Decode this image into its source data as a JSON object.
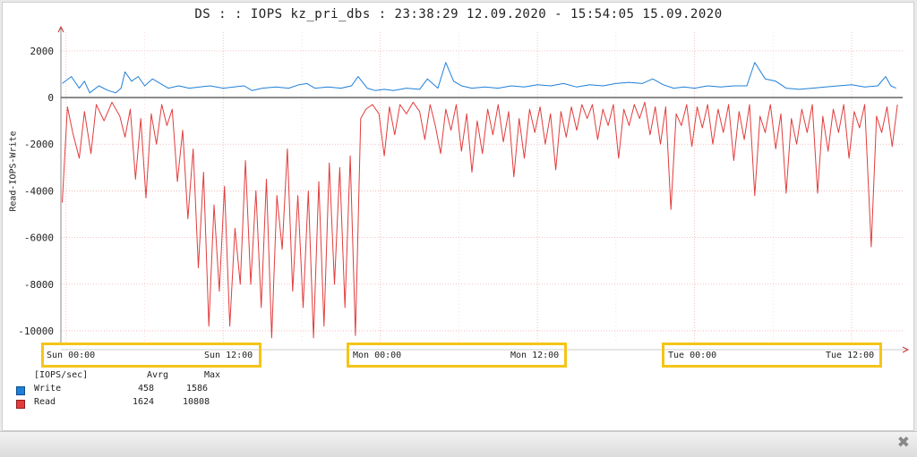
{
  "title": "DS : : IOPS kz_pri_dbs : 23:38:29 12.09.2020 - 15:54:05 15.09.2020",
  "window": {
    "close_glyph": "✖"
  },
  "legend": {
    "header": {
      "unit": "[IOPS/sec]",
      "avg_label": "Avrg",
      "max_label": "Max"
    },
    "items": [
      {
        "name": "Write",
        "avg": "458",
        "max": "1586",
        "color": "#1f7fd8"
      },
      {
        "name": "Read",
        "avg": "1624",
        "max": "10808",
        "color": "#e23c3c"
      }
    ]
  },
  "chart_data": {
    "type": "line",
    "title": "DS : : IOPS kz_pri_dbs : 23:38:29 12.09.2020 - 15:54:05 15.09.2020",
    "ylabel": "Read-IOPS-Write",
    "xlabel": "",
    "ylim": [
      -10500,
      2800
    ],
    "yticks": [
      2000,
      0,
      -2000,
      -4000,
      -6000,
      -8000,
      -10000
    ],
    "x_unit": "hours since Sun 00:00",
    "xlim": [
      -0.4,
      63.9
    ],
    "xticks": [
      {
        "x": 0,
        "label": "Sun 00:00"
      },
      {
        "x": 12,
        "label": "Sun 12:00"
      },
      {
        "x": 24,
        "label": "Mon 00:00"
      },
      {
        "x": 36,
        "label": "Mon 12:00"
      },
      {
        "x": 48,
        "label": "Tue 00:00"
      },
      {
        "x": 60,
        "label": "Tue 12:00"
      }
    ],
    "grid": true,
    "series": [
      {
        "name": "Write",
        "color": "#1f7fd8",
        "points": [
          [
            -0.3,
            600
          ],
          [
            0.4,
            900
          ],
          [
            1.0,
            400
          ],
          [
            1.4,
            700
          ],
          [
            1.8,
            200
          ],
          [
            2.5,
            500
          ],
          [
            3.2,
            300
          ],
          [
            3.8,
            200
          ],
          [
            4.2,
            400
          ],
          [
            4.5,
            1100
          ],
          [
            5.0,
            700
          ],
          [
            5.5,
            900
          ],
          [
            6.0,
            500
          ],
          [
            6.6,
            800
          ],
          [
            7.2,
            600
          ],
          [
            7.8,
            400
          ],
          [
            8.6,
            500
          ],
          [
            9.4,
            400
          ],
          [
            10.2,
            450
          ],
          [
            11.0,
            500
          ],
          [
            12.0,
            400
          ],
          [
            12.8,
            450
          ],
          [
            13.6,
            500
          ],
          [
            14.2,
            300
          ],
          [
            15.0,
            400
          ],
          [
            16.0,
            450
          ],
          [
            17.0,
            400
          ],
          [
            17.8,
            550
          ],
          [
            18.4,
            600
          ],
          [
            19.0,
            400
          ],
          [
            20.0,
            450
          ],
          [
            21.0,
            400
          ],
          [
            21.8,
            500
          ],
          [
            22.3,
            900
          ],
          [
            23.0,
            400
          ],
          [
            23.6,
            300
          ],
          [
            24.3,
            350
          ],
          [
            25.0,
            300
          ],
          [
            26.0,
            400
          ],
          [
            27.0,
            350
          ],
          [
            27.6,
            800
          ],
          [
            28.4,
            400
          ],
          [
            29.0,
            1500
          ],
          [
            29.6,
            700
          ],
          [
            30.2,
            500
          ],
          [
            31.0,
            400
          ],
          [
            32.0,
            450
          ],
          [
            33.0,
            400
          ],
          [
            34.0,
            500
          ],
          [
            35.0,
            450
          ],
          [
            36.0,
            550
          ],
          [
            37.0,
            500
          ],
          [
            38.0,
            600
          ],
          [
            39.0,
            450
          ],
          [
            40.0,
            550
          ],
          [
            41.0,
            500
          ],
          [
            42.0,
            600
          ],
          [
            43.0,
            650
          ],
          [
            44.0,
            600
          ],
          [
            44.8,
            800
          ],
          [
            45.6,
            550
          ],
          [
            46.4,
            400
          ],
          [
            47.2,
            450
          ],
          [
            48.0,
            400
          ],
          [
            49.0,
            500
          ],
          [
            50.0,
            450
          ],
          [
            51.0,
            500
          ],
          [
            52.0,
            500
          ],
          [
            52.6,
            1500
          ],
          [
            53.4,
            800
          ],
          [
            54.2,
            700
          ],
          [
            55.0,
            400
          ],
          [
            56.0,
            350
          ],
          [
            57.0,
            400
          ],
          [
            58.0,
            450
          ],
          [
            59.0,
            500
          ],
          [
            60.0,
            550
          ],
          [
            61.0,
            450
          ],
          [
            62.0,
            500
          ],
          [
            62.6,
            900
          ],
          [
            63.0,
            500
          ],
          [
            63.4,
            400
          ]
        ]
      },
      {
        "name": "Read",
        "color": "#e23c3c",
        "points": [
          [
            -0.3,
            -4500
          ],
          [
            0.1,
            -400
          ],
          [
            0.5,
            -1500
          ],
          [
            1.0,
            -2600
          ],
          [
            1.4,
            -600
          ],
          [
            1.9,
            -2400
          ],
          [
            2.3,
            -300
          ],
          [
            2.9,
            -1000
          ],
          [
            3.5,
            -200
          ],
          [
            4.1,
            -800
          ],
          [
            4.5,
            -1700
          ],
          [
            4.9,
            -500
          ],
          [
            5.3,
            -3500
          ],
          [
            5.7,
            -900
          ],
          [
            6.1,
            -4300
          ],
          [
            6.5,
            -700
          ],
          [
            6.9,
            -2000
          ],
          [
            7.3,
            -300
          ],
          [
            7.7,
            -1200
          ],
          [
            8.1,
            -500
          ],
          [
            8.5,
            -3600
          ],
          [
            8.9,
            -1400
          ],
          [
            9.3,
            -5200
          ],
          [
            9.7,
            -2200
          ],
          [
            10.1,
            -7300
          ],
          [
            10.5,
            -3200
          ],
          [
            10.9,
            -9800
          ],
          [
            11.3,
            -4600
          ],
          [
            11.7,
            -8300
          ],
          [
            12.1,
            -3800
          ],
          [
            12.5,
            -9800
          ],
          [
            12.9,
            -5600
          ],
          [
            13.3,
            -8000
          ],
          [
            13.7,
            -2700
          ],
          [
            14.1,
            -8000
          ],
          [
            14.5,
            -4000
          ],
          [
            14.9,
            -9000
          ],
          [
            15.3,
            -3500
          ],
          [
            15.7,
            -10300
          ],
          [
            16.1,
            -4200
          ],
          [
            16.5,
            -6500
          ],
          [
            16.9,
            -2200
          ],
          [
            17.3,
            -8300
          ],
          [
            17.7,
            -4200
          ],
          [
            18.1,
            -9000
          ],
          [
            18.5,
            -4000
          ],
          [
            18.9,
            -10300
          ],
          [
            19.3,
            -3600
          ],
          [
            19.7,
            -9800
          ],
          [
            20.1,
            -2800
          ],
          [
            20.5,
            -8000
          ],
          [
            20.9,
            -3000
          ],
          [
            21.3,
            -9000
          ],
          [
            21.7,
            -2500
          ],
          [
            22.1,
            -10200
          ],
          [
            22.5,
            -900
          ],
          [
            22.9,
            -500
          ],
          [
            23.4,
            -300
          ],
          [
            23.9,
            -700
          ],
          [
            24.3,
            -2500
          ],
          [
            24.7,
            -400
          ],
          [
            25.1,
            -1600
          ],
          [
            25.5,
            -300
          ],
          [
            26.0,
            -700
          ],
          [
            26.5,
            -200
          ],
          [
            27.0,
            -600
          ],
          [
            27.4,
            -1800
          ],
          [
            27.8,
            -300
          ],
          [
            28.2,
            -1200
          ],
          [
            28.6,
            -2400
          ],
          [
            29.0,
            -500
          ],
          [
            29.4,
            -1400
          ],
          [
            29.8,
            -300
          ],
          [
            30.2,
            -2300
          ],
          [
            30.6,
            -700
          ],
          [
            31.0,
            -3200
          ],
          [
            31.4,
            -1000
          ],
          [
            31.8,
            -2400
          ],
          [
            32.2,
            -500
          ],
          [
            32.6,
            -1600
          ],
          [
            33.0,
            -300
          ],
          [
            33.4,
            -1900
          ],
          [
            33.8,
            -600
          ],
          [
            34.2,
            -3400
          ],
          [
            34.6,
            -900
          ],
          [
            35.0,
            -2600
          ],
          [
            35.4,
            -500
          ],
          [
            35.8,
            -1500
          ],
          [
            36.2,
            -400
          ],
          [
            36.6,
            -2000
          ],
          [
            37.0,
            -700
          ],
          [
            37.4,
            -3100
          ],
          [
            37.8,
            -600
          ],
          [
            38.2,
            -1700
          ],
          [
            38.6,
            -400
          ],
          [
            39.0,
            -1400
          ],
          [
            39.4,
            -300
          ],
          [
            39.8,
            -900
          ],
          [
            40.2,
            -300
          ],
          [
            40.6,
            -1800
          ],
          [
            41.0,
            -500
          ],
          [
            41.4,
            -1200
          ],
          [
            41.8,
            -300
          ],
          [
            42.2,
            -2600
          ],
          [
            42.6,
            -500
          ],
          [
            43.0,
            -1200
          ],
          [
            43.4,
            -300
          ],
          [
            43.8,
            -900
          ],
          [
            44.2,
            -200
          ],
          [
            44.6,
            -1600
          ],
          [
            45.0,
            -400
          ],
          [
            45.4,
            -2000
          ],
          [
            45.8,
            -400
          ],
          [
            46.2,
            -4800
          ],
          [
            46.6,
            -700
          ],
          [
            47.0,
            -1200
          ],
          [
            47.4,
            -300
          ],
          [
            47.8,
            -2100
          ],
          [
            48.2,
            -400
          ],
          [
            48.6,
            -1300
          ],
          [
            49.0,
            -300
          ],
          [
            49.4,
            -2000
          ],
          [
            49.8,
            -500
          ],
          [
            50.2,
            -1500
          ],
          [
            50.6,
            -300
          ],
          [
            51.0,
            -2700
          ],
          [
            51.4,
            -600
          ],
          [
            51.8,
            -1800
          ],
          [
            52.2,
            -300
          ],
          [
            52.6,
            -4200
          ],
          [
            53.0,
            -800
          ],
          [
            53.4,
            -1500
          ],
          [
            53.8,
            -300
          ],
          [
            54.2,
            -2200
          ],
          [
            54.6,
            -700
          ],
          [
            55.0,
            -4100
          ],
          [
            55.4,
            -900
          ],
          [
            55.8,
            -2000
          ],
          [
            56.2,
            -500
          ],
          [
            56.6,
            -1500
          ],
          [
            57.0,
            -300
          ],
          [
            57.4,
            -4100
          ],
          [
            57.8,
            -800
          ],
          [
            58.2,
            -2300
          ],
          [
            58.6,
            -500
          ],
          [
            59.0,
            -1500
          ],
          [
            59.4,
            -300
          ],
          [
            59.8,
            -2600
          ],
          [
            60.2,
            -600
          ],
          [
            60.6,
            -1300
          ],
          [
            61.0,
            -300
          ],
          [
            61.5,
            -6400
          ],
          [
            61.9,
            -800
          ],
          [
            62.3,
            -1500
          ],
          [
            62.7,
            -400
          ],
          [
            63.1,
            -2100
          ],
          [
            63.5,
            -300
          ]
        ]
      }
    ]
  }
}
